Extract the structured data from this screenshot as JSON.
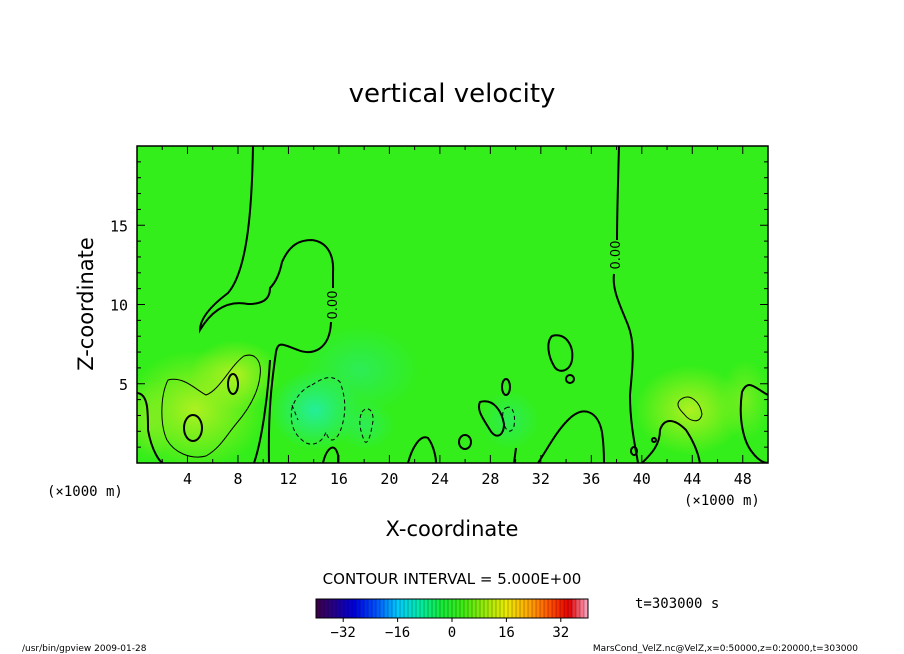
{
  "chart_data": {
    "type": "heatmap",
    "title": "vertical velocity",
    "xlabel": "X-coordinate",
    "ylabel": "Z-coordinate",
    "x_unit_left": "(×1000 m)",
    "x_unit_right": "(×1000 m)",
    "xlim": [
      0,
      50
    ],
    "ylim": [
      0,
      20
    ],
    "x_ticks": [
      4,
      8,
      12,
      16,
      20,
      24,
      28,
      32,
      36,
      40,
      44,
      48
    ],
    "y_ticks": [
      5,
      10,
      15
    ],
    "contour_interval_text": "CONTOUR INTERVAL = 5.000E+00",
    "contour_label": "0.00",
    "time_label": "t=303000 s",
    "colorbar": {
      "min": -40,
      "max": 40,
      "ticks": [
        -32,
        -16,
        0,
        16,
        32
      ]
    },
    "colors": {
      "background_field": "#33ee1a",
      "frame": "#000000"
    },
    "features": [
      {
        "x": 4.6,
        "z": 2.0,
        "value": 9,
        "sign": "positive"
      },
      {
        "x": 7.6,
        "z": 5.0,
        "value": 7,
        "sign": "positive"
      },
      {
        "x": 14.0,
        "z": 3.0,
        "value": -7,
        "sign": "negative"
      },
      {
        "x": 18.0,
        "z": 2.3,
        "value": -4,
        "sign": "negative"
      },
      {
        "x": 29.0,
        "z": 3.5,
        "value": -3,
        "sign": "negative"
      },
      {
        "x": 43.3,
        "z": 3.2,
        "value": 6,
        "sign": "positive"
      }
    ]
  },
  "footer": {
    "left": "/usr/bin/gpview   2009-01-28",
    "right": "MarsCond_VelZ.nc@VelZ,x=0:50000,z=0:20000,t=303000"
  }
}
